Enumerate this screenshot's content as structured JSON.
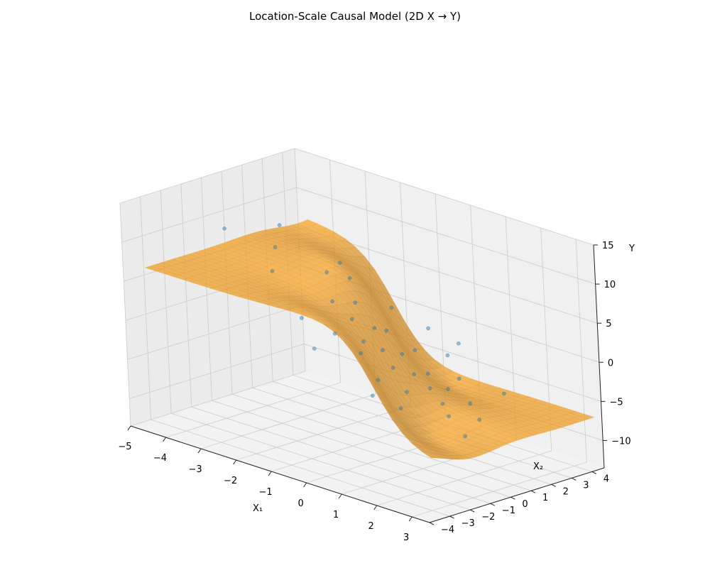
{
  "chart_data": {
    "type": "surface3d",
    "title": "Location-Scale Causal Model (2D X → Y)",
    "xlabel": "X₁",
    "ylabel": "X₂",
    "zlabel": "Y",
    "xlim": [
      -5,
      3.5
    ],
    "ylim": [
      -4,
      4.6
    ],
    "zlim": [
      -13.5,
      15
    ],
    "x_ticks": [
      -5,
      -4,
      -3,
      -2,
      -1,
      0,
      1,
      2,
      3
    ],
    "y_ticks": [
      -4,
      -3,
      -2,
      -1,
      0,
      1,
      2,
      3,
      4
    ],
    "z_ticks": [
      -10,
      -5,
      0,
      5,
      10,
      15
    ],
    "x_tick_labels": [
      "−5",
      "−4",
      "−3",
      "−2",
      "−1",
      "0",
      "1",
      "2",
      "3"
    ],
    "y_tick_labels": [
      "−4",
      "−3",
      "−2",
      "−1",
      "0",
      "1",
      "2",
      "3",
      "4"
    ],
    "z_tick_labels": [
      "−10",
      "−5",
      "0",
      "5",
      "10",
      "15"
    ],
    "grid": true,
    "surface_color": "#f5a300",
    "scatter_color": "#1f77b4",
    "scatter_points": [
      [
        -2.1,
        1.0,
        6.3
      ],
      [
        -1.5,
        0.2,
        4.1
      ],
      [
        -1.2,
        0.8,
        3.9
      ],
      [
        -0.9,
        0.1,
        2.8
      ],
      [
        -0.5,
        0.5,
        1.9
      ],
      [
        -0.3,
        -0.4,
        1.2
      ],
      [
        0.0,
        0.0,
        0.2
      ],
      [
        0.2,
        0.6,
        -0.5
      ],
      [
        0.4,
        -0.2,
        -1.3
      ],
      [
        0.7,
        0.3,
        -2.1
      ],
      [
        1.0,
        -0.6,
        -3.2
      ],
      [
        1.3,
        0.9,
        -3.6
      ],
      [
        1.6,
        0.1,
        -4.4
      ],
      [
        2.0,
        -0.3,
        -5.1
      ],
      [
        -2.6,
        -0.8,
        7.2
      ],
      [
        -3.2,
        0.4,
        8.4
      ],
      [
        -1.8,
        1.6,
        5.5
      ],
      [
        -0.7,
        -1.1,
        2.2
      ],
      [
        0.1,
        1.4,
        -0.8
      ],
      [
        0.6,
        -1.3,
        -1.7
      ],
      [
        1.1,
        1.8,
        -3.3
      ],
      [
        1.8,
        1.1,
        -4.9
      ],
      [
        2.4,
        0.5,
        -5.6
      ],
      [
        -1.0,
        2.2,
        2.4
      ],
      [
        -0.2,
        2.6,
        0.6
      ],
      [
        0.5,
        2.3,
        -1.6
      ],
      [
        1.4,
        -1.6,
        -3.9
      ],
      [
        -1.4,
        -1.5,
        3.5
      ],
      [
        -2.3,
        2.0,
        6.4
      ],
      [
        0.9,
        -2.1,
        -2.6
      ],
      [
        -0.6,
        -2.3,
        1.4
      ],
      [
        2.8,
        -0.9,
        -6.0
      ],
      [
        -3.7,
        1.5,
        9.6
      ],
      [
        -4.1,
        -0.5,
        10.2
      ],
      [
        0.3,
        3.2,
        -1.1
      ],
      [
        1.9,
        2.6,
        -4.7
      ],
      [
        -0.4,
        0.9,
        1.4
      ],
      [
        0.8,
        0.8,
        -2.3
      ],
      [
        -0.1,
        -0.9,
        0.4
      ],
      [
        1.2,
        0.2,
        -3.1
      ]
    ]
  }
}
